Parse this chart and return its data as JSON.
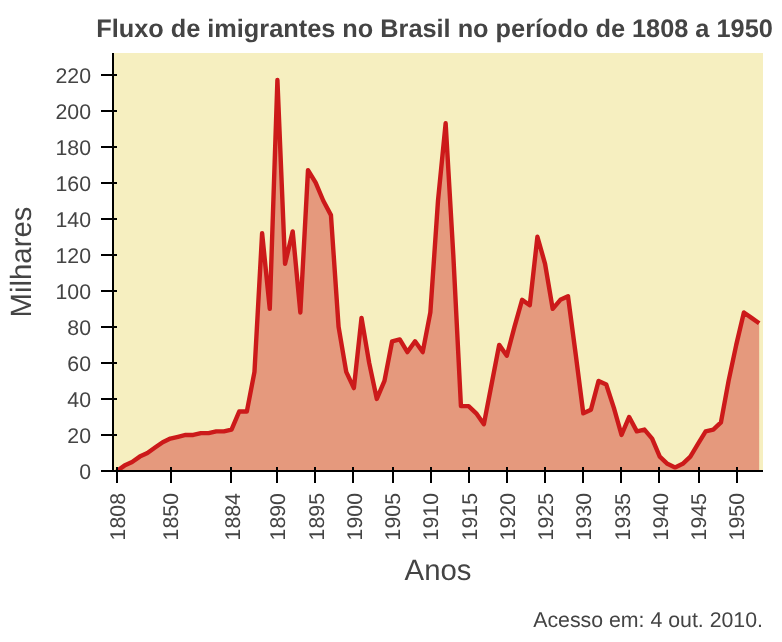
{
  "chart_data": {
    "type": "area",
    "title": "Fluxo de imigrantes no Brasil  no período de 1808 a 1950",
    "xlabel": "Anos",
    "ylabel": "Milhares",
    "annotations": [
      "Acesso em: 4 out. 2010."
    ],
    "categories": [
      "1808",
      null,
      null,
      null,
      null,
      null,
      null,
      "1850",
      null,
      null,
      null,
      null,
      null,
      null,
      null,
      "1884",
      null,
      null,
      null,
      null,
      null,
      "1890",
      null,
      null,
      null,
      null,
      "1895",
      null,
      null,
      null,
      null,
      "1900",
      null,
      null,
      null,
      null,
      "1905",
      null,
      null,
      null,
      null,
      "1910",
      null,
      null,
      null,
      null,
      "1915",
      null,
      null,
      null,
      null,
      "1920",
      null,
      null,
      null,
      null,
      "1925",
      null,
      null,
      null,
      null,
      "1930",
      null,
      null,
      null,
      null,
      "1935",
      null,
      null,
      null,
      null,
      "1940",
      null,
      null,
      null,
      null,
      "1945",
      null,
      null,
      null,
      null,
      "1950",
      null,
      null,
      null
    ],
    "series": [
      {
        "color": "#cc1a1a",
        "values": [
          0,
          3,
          5,
          8,
          10,
          13,
          16,
          18,
          19,
          20,
          20,
          21,
          21,
          22,
          22,
          23,
          33,
          33,
          55,
          132,
          90,
          217,
          115,
          133,
          88,
          167,
          160,
          150,
          142,
          80,
          55,
          46,
          85,
          60,
          40,
          50,
          72,
          73,
          66,
          72,
          66,
          88,
          150,
          193,
          120,
          36,
          36,
          32,
          26,
          48,
          70,
          64,
          80,
          95,
          92,
          130,
          115,
          90,
          95,
          97,
          65,
          32,
          34,
          50,
          48,
          35,
          20,
          30,
          22,
          23,
          18,
          8,
          4,
          2,
          4,
          8,
          15,
          22,
          23,
          27,
          50,
          70,
          88,
          85,
          82
        ]
      }
    ],
    "ylim": [
      0,
      232
    ],
    "yticks": [
      0,
      20,
      40,
      60,
      80,
      100,
      120,
      140,
      160,
      180,
      200,
      220
    ],
    "grid": false
  }
}
